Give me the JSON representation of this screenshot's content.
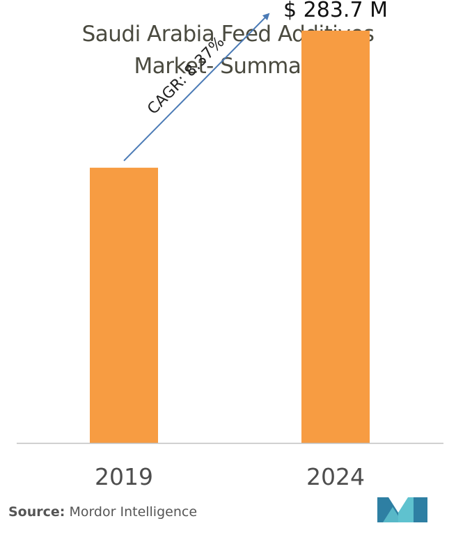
{
  "title_line1": "Saudi Arabia Feed Additives",
  "title_line2": "Market- Summary",
  "chart_data": {
    "type": "bar",
    "title": "Saudi Arabia Feed Additives Market- Summary",
    "categories": [
      "2019",
      "2024"
    ],
    "values": [
      189.4,
      283.7
    ],
    "value_labels": [
      "",
      "$ 283.7 M"
    ],
    "units": "USD Million",
    "ylim": [
      0,
      300
    ],
    "grid": false,
    "annotation": "CAGR: 8.37%",
    "bar_color": "#f79c42",
    "arrow_color": "#4a7ab5",
    "axis_color": "#bfbfbf"
  },
  "source": {
    "label": "Source:",
    "name": "Mordor Intelligence"
  },
  "logo": {
    "icon": "mordor-intelligence-logo-icon",
    "color_dark": "#2e7fa3",
    "color_light": "#5fc2cf"
  }
}
